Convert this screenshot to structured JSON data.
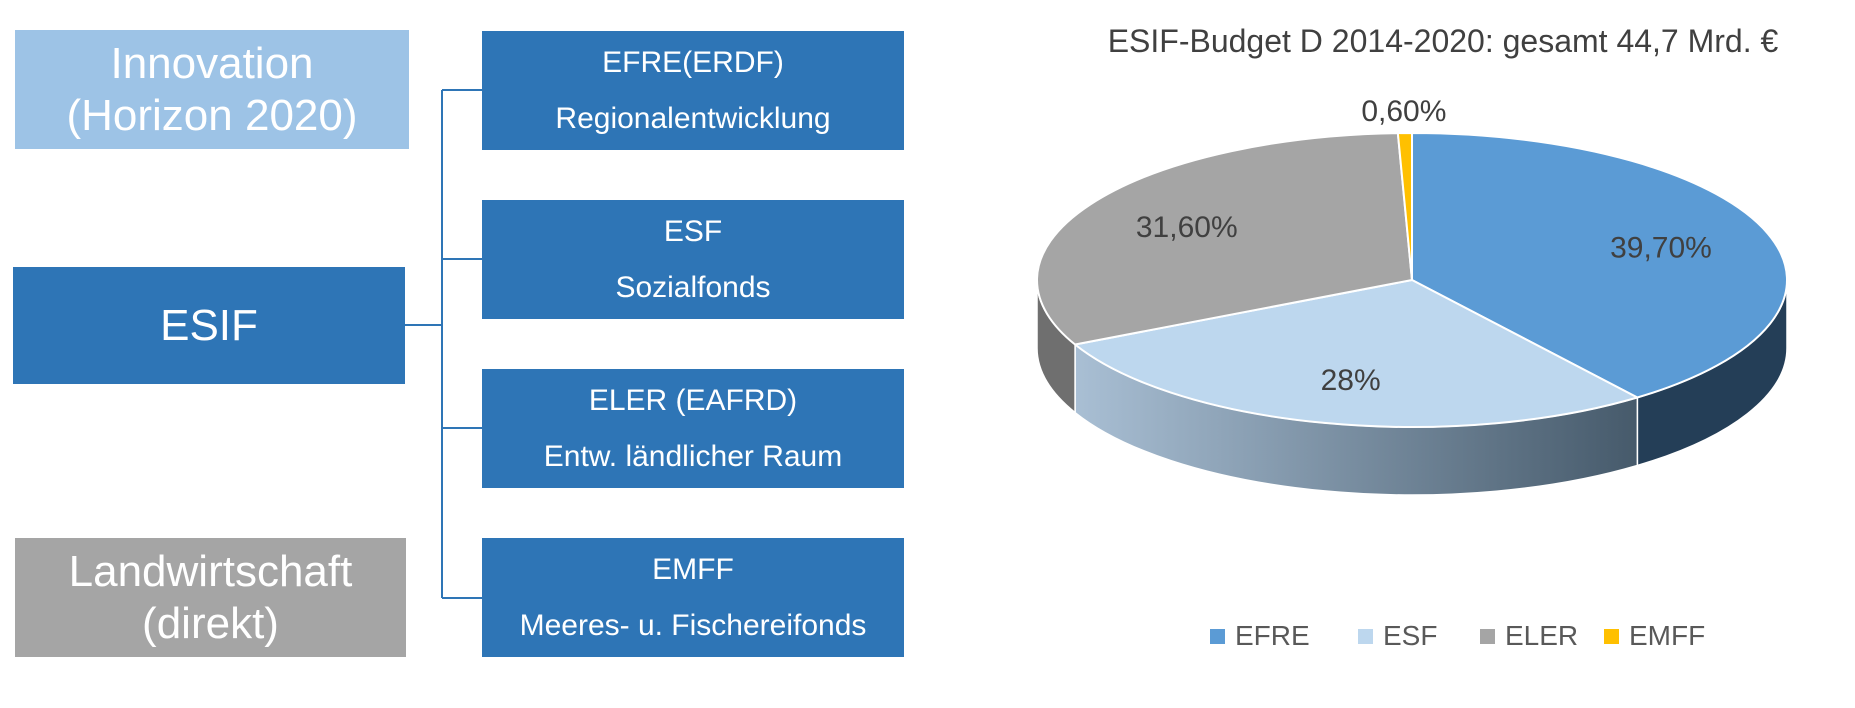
{
  "diagram": {
    "innovation": {
      "line1": "Innovation",
      "line2": "(Horizon 2020)",
      "color": "#9dc3e6"
    },
    "esif": {
      "label": "ESIF",
      "color": "#2e75b6"
    },
    "landwirtschaft": {
      "line1": "Landwirtschaft",
      "line2": "(direkt)",
      "color": "#a5a5a5"
    },
    "funds": [
      {
        "line1": "EFRE(ERDF)",
        "line2": "Regionalentwicklung"
      },
      {
        "line1": "ESF",
        "line2": "Sozialfonds"
      },
      {
        "line1": "ELER (EAFRD)",
        "line2": "Entw. ländlicher Raum"
      },
      {
        "line1": "EMFF",
        "line2": "Meeres- u. Fischereifonds"
      }
    ],
    "fund_color": "#2e75b6"
  },
  "chart_data": {
    "type": "pie",
    "style": "3d",
    "title": "ESIF-Budget D 2014-2020: gesamt 44,7 Mrd. €",
    "categories": [
      "EFRE",
      "ESF",
      "ELER",
      "EMFF"
    ],
    "values": [
      39.7,
      28,
      31.6,
      0.6
    ],
    "data_labels": [
      "39,70%",
      "28%",
      "31,60%",
      "0,60%"
    ],
    "colors": [
      "#5b9bd5",
      "#bdd7ee",
      "#a5a5a5",
      "#ffc000"
    ],
    "legend_position": "bottom"
  }
}
